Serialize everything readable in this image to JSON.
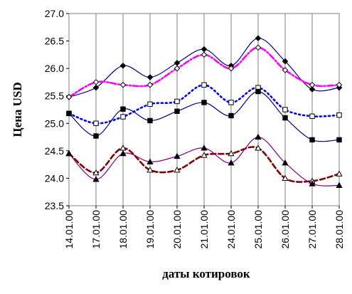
{
  "chart_data": {
    "type": "line",
    "xlabel": "даты котировок",
    "ylabel": "Цена USD",
    "categories": [
      "14.01.00",
      "17.01.00",
      "18.01.00",
      "19.01.00",
      "20.01.00",
      "21.01.00",
      "24.01.00",
      "25.01.00",
      "26.01.00",
      "27.01.00",
      "28.01.00"
    ],
    "ylim": [
      23.5,
      27.0
    ],
    "yticks": [
      "23.5",
      "24.0",
      "24.5",
      "25.0",
      "25.5",
      "26.0",
      "26.5",
      "27.0"
    ],
    "grid": "vertical",
    "series": [
      {
        "values": [
          25.48,
          25.65,
          26.05,
          25.84,
          26.1,
          26.35,
          26.05,
          26.55,
          26.13,
          25.62,
          25.65
        ],
        "color": "#000080",
        "line": "solid",
        "marker": "filled-diamond"
      },
      {
        "values": [
          25.48,
          25.75,
          25.7,
          25.7,
          26.0,
          26.25,
          26.0,
          26.38,
          25.97,
          25.7,
          25.7
        ],
        "color": "#ff00ff",
        "line": "dash-dot",
        "marker": "open-diamond"
      },
      {
        "values": [
          25.18,
          25.0,
          25.12,
          25.35,
          25.4,
          25.7,
          25.38,
          25.65,
          25.25,
          25.13,
          25.15
        ],
        "color": "#0000ff",
        "line": "dotted",
        "marker": "open-square"
      },
      {
        "values": [
          25.18,
          24.77,
          25.26,
          25.05,
          25.22,
          25.38,
          25.14,
          25.58,
          25.1,
          24.7,
          24.7
        ],
        "color": "#000080",
        "line": "solid",
        "marker": "filled-square"
      },
      {
        "values": [
          24.45,
          24.1,
          24.55,
          24.15,
          24.15,
          24.42,
          24.45,
          24.55,
          24.0,
          23.95,
          24.08
        ],
        "color": "#800000",
        "line": "dashed",
        "marker": "open-triangle"
      },
      {
        "values": [
          24.45,
          23.98,
          24.45,
          24.3,
          24.4,
          24.55,
          24.28,
          24.75,
          24.28,
          23.9,
          23.87
        ],
        "color": "#800080",
        "line": "solid",
        "marker": "filled-triangle"
      }
    ]
  }
}
